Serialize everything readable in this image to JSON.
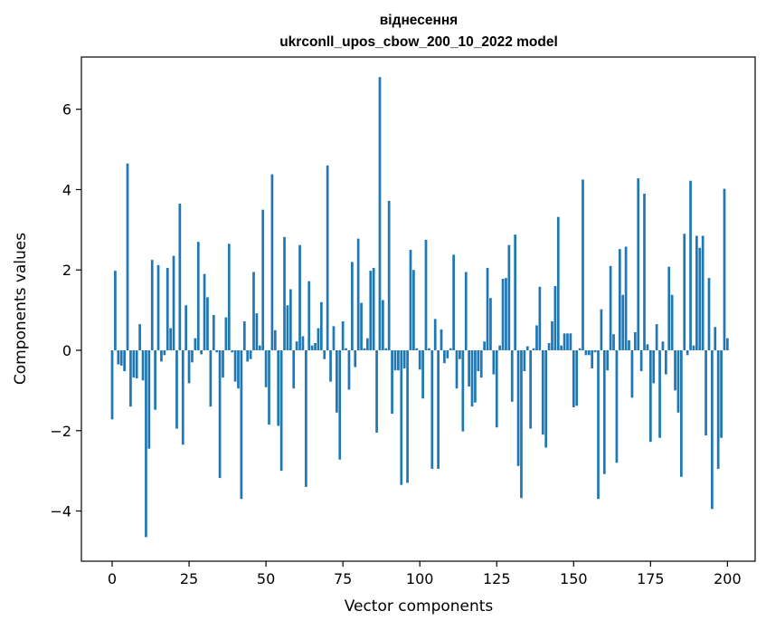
{
  "chart_data": {
    "type": "bar",
    "title_line1": "віднесення",
    "title_line2": "ukrconll_upos_cbow_200_10_2022 model",
    "xlabel": "Vector components",
    "ylabel": "Components values",
    "xlim": [
      -10,
      209
    ],
    "ylim": [
      -5.25,
      7.3
    ],
    "x_ticks": [
      0,
      25,
      50,
      75,
      100,
      125,
      150,
      175,
      200
    ],
    "y_ticks": [
      -4,
      -2,
      0,
      2,
      4,
      6
    ],
    "x_tick_labels": [
      "0",
      "25",
      "50",
      "75",
      "100",
      "125",
      "150",
      "175",
      "200"
    ],
    "y_tick_labels": [
      "−4",
      "−2",
      "0",
      "2",
      "4",
      "6"
    ],
    "grid": false,
    "bar_color": "#1f77b4",
    "values": [
      -1.72,
      1.98,
      -0.35,
      -0.38,
      -0.52,
      4.65,
      -1.4,
      -0.68,
      -0.7,
      0.65,
      -0.75,
      -4.65,
      -2.45,
      2.25,
      -1.48,
      2.12,
      -0.28,
      -0.12,
      2.05,
      0.55,
      2.35,
      -1.95,
      3.65,
      -2.35,
      1.12,
      -0.82,
      -0.3,
      0.3,
      2.7,
      -0.1,
      1.9,
      1.32,
      -1.4,
      0.88,
      -0.05,
      -3.18,
      -0.68,
      0.82,
      2.65,
      -0.05,
      -0.78,
      -0.95,
      -3.7,
      0.72,
      -0.28,
      -0.22,
      1.95,
      0.92,
      0.12,
      3.5,
      -0.92,
      -1.85,
      4.38,
      0.5,
      -1.88,
      -3.0,
      2.82,
      1.12,
      1.52,
      -0.95,
      0.22,
      2.62,
      0.35,
      -3.4,
      1.72,
      0.12,
      0.18,
      0.55,
      1.2,
      -0.22,
      4.6,
      -0.78,
      0.6,
      -1.55,
      -2.72,
      0.72,
      0.05,
      -0.98,
      2.2,
      -0.42,
      2.78,
      1.18,
      0.05,
      0.3,
      1.98,
      2.05,
      -2.05,
      6.8,
      1.25,
      0.05,
      3.72,
      -1.58,
      -0.5,
      -0.5,
      -3.35,
      -0.45,
      -3.3,
      2.5,
      2.0,
      0.05,
      -0.48,
      -1.2,
      2.75,
      0.05,
      -2.95,
      0.78,
      -2.95,
      0.52,
      -0.32,
      -0.2,
      0.05,
      2.38,
      -0.95,
      -0.22,
      -2.02,
      1.95,
      -0.9,
      -1.4,
      -1.3,
      -0.52,
      -0.68,
      0.22,
      2.05,
      1.3,
      -0.6,
      -1.92,
      0.12,
      1.78,
      1.8,
      2.62,
      -1.28,
      2.88,
      -2.88,
      -3.68,
      -0.52,
      0.1,
      -1.95,
      0.05,
      0.62,
      1.58,
      -2.1,
      -2.42,
      0.18,
      0.72,
      1.6,
      3.32,
      0.12,
      0.42,
      0.42,
      0.42,
      -1.42,
      -1.38,
      0.05,
      4.25,
      -0.12,
      -0.12,
      -0.45,
      -0.05,
      -3.7,
      1.02,
      -3.08,
      -0.5,
      2.1,
      0.4,
      -2.8,
      2.52,
      1.38,
      2.58,
      0.25,
      -1.18,
      0.45,
      4.28,
      -0.52,
      3.9,
      0.15,
      -2.28,
      -0.82,
      0.65,
      -2.18,
      0.22,
      -0.6,
      2.08,
      1.38,
      -1.0,
      -1.55,
      -3.15,
      2.9,
      -0.12,
      4.22,
      0.12,
      2.85,
      2.55,
      2.85,
      -2.12,
      1.8,
      -3.95,
      0.58,
      -2.95,
      -2.18,
      4.02,
      0.3
    ]
  }
}
